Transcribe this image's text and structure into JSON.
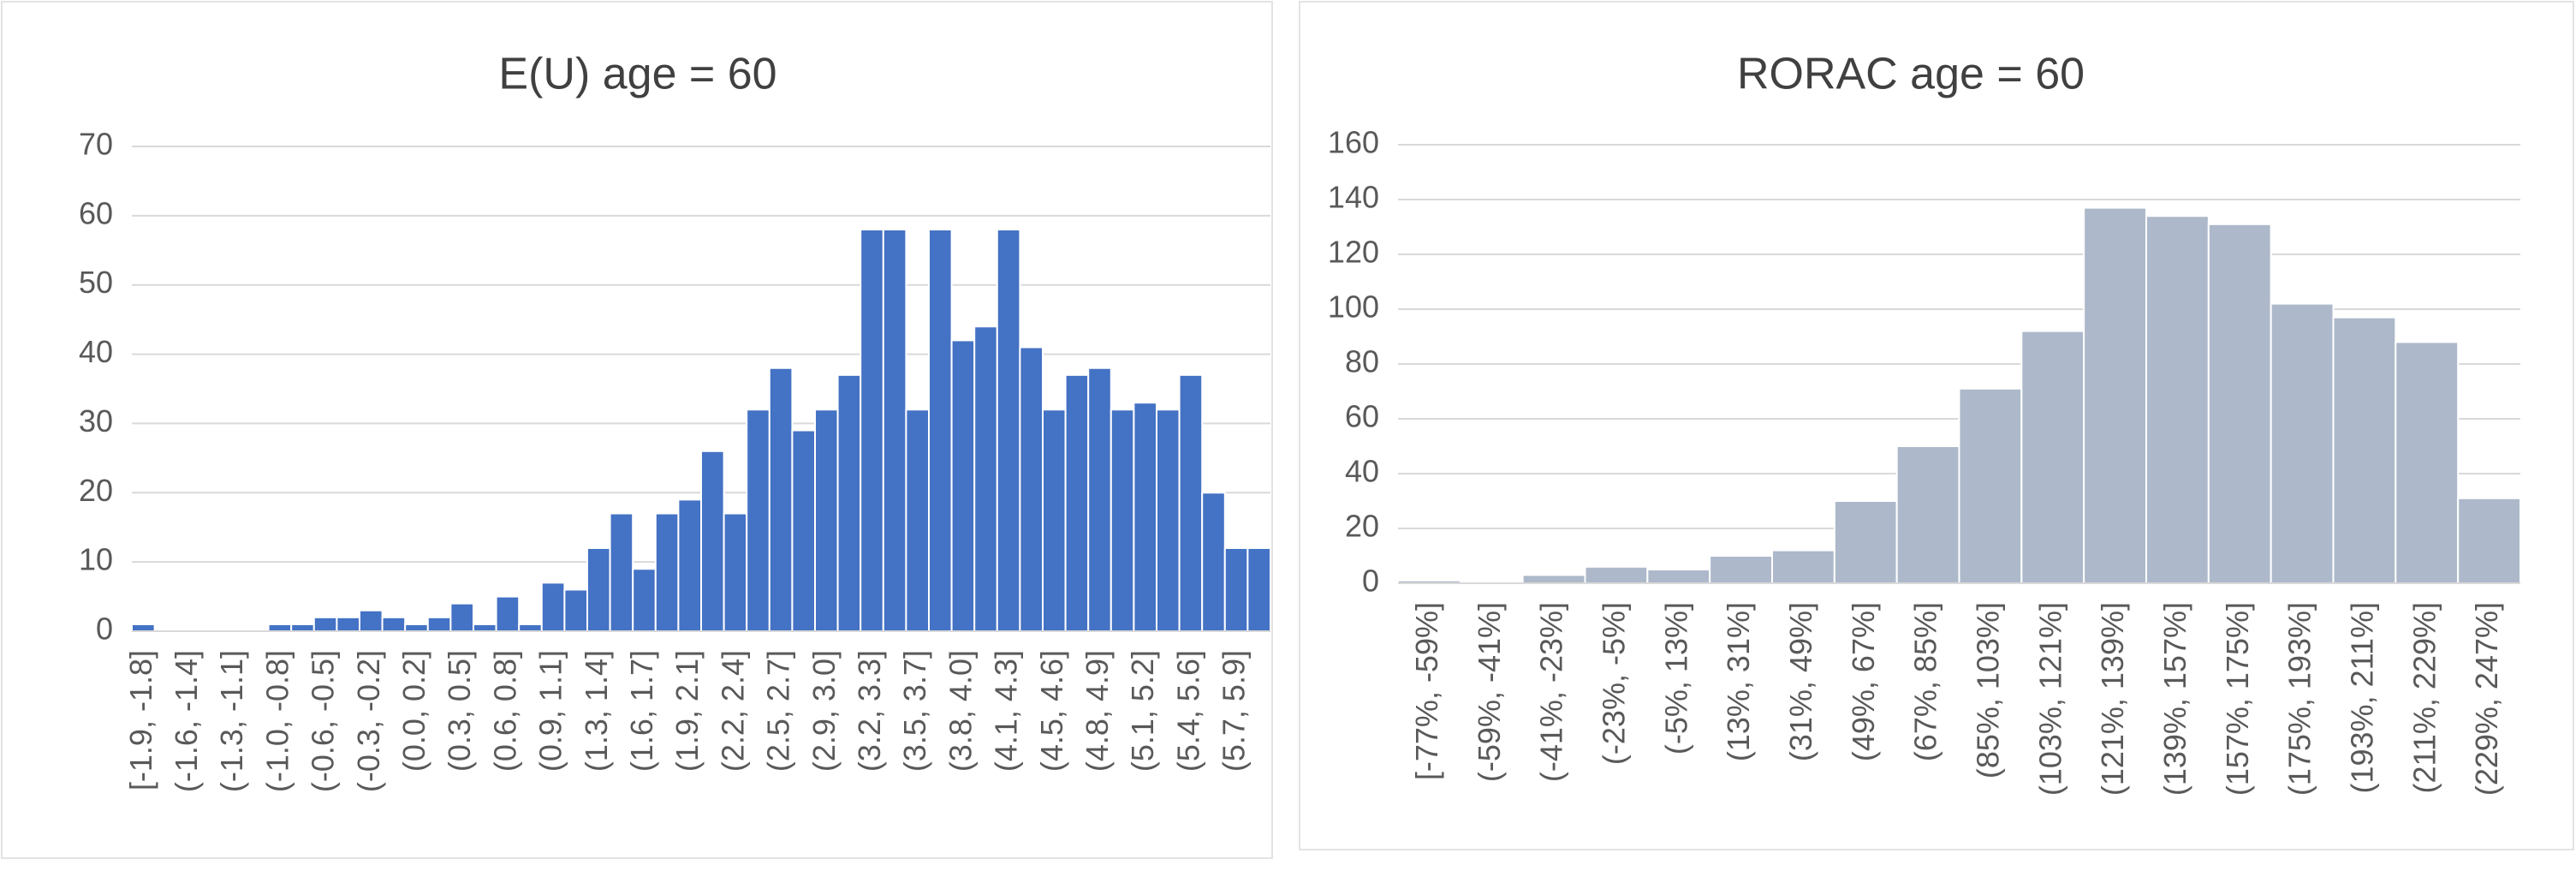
{
  "chart_data": [
    {
      "type": "bar",
      "title": "E(U) age = 60",
      "color": "#4472c4",
      "categories": [
        "[-1.9, -1.8]",
        null,
        "(-1.6, -1.4]",
        null,
        "(-1.3, -1.1]",
        null,
        "(-1.0, -0.8]",
        null,
        "(-0.6, -0.5]",
        null,
        "(-0.3, -0.2]",
        null,
        "(0.0, 0.2]",
        null,
        "(0.3, 0.5]",
        null,
        "(0.6, 0.8]",
        null,
        "(0.9, 1.1]",
        null,
        "(1.3, 1.4]",
        null,
        "(1.6, 1.7]",
        null,
        "(1.9, 2.1]",
        null,
        "(2.2, 2.4]",
        null,
        "(2.5, 2.7]",
        null,
        "(2.9, 3.0]",
        null,
        "(3.2, 3.3]",
        null,
        "(3.5, 3.7]",
        null,
        "(3.8, 4.0]",
        null,
        "(4.1, 4.3]",
        null,
        "(4.5, 4.6]",
        null,
        "(4.8, 4.9]",
        null,
        "(5.1, 5.2]",
        null,
        "(5.4, 5.6]",
        null,
        "(5.7, 5.9]",
        null
      ],
      "values": [
        1,
        0,
        0,
        0,
        0,
        0,
        1,
        1,
        2,
        2,
        3,
        2,
        1,
        2,
        4,
        1,
        5,
        1,
        7,
        6,
        12,
        17,
        9,
        17,
        19,
        26,
        17,
        32,
        38,
        29,
        32,
        37,
        58,
        58,
        32,
        58,
        42,
        44,
        58,
        41,
        32,
        37,
        38,
        32,
        33,
        32,
        37,
        20,
        12,
        12
      ],
      "ylim": [
        0,
        70
      ],
      "yticks": [
        0,
        10,
        20,
        30,
        40,
        50,
        60,
        70
      ],
      "grid": true
    },
    {
      "type": "bar",
      "title": "RORAC age = 60",
      "color": "#adb9ca",
      "categories": [
        "[-77%, -59%]",
        "(-59%, -41%]",
        "(-41%, -23%]",
        "(-23%, -5%]",
        "(-5%, 13%]",
        "(13%, 31%]",
        "(31%, 49%]",
        "(49%, 67%]",
        "(67%, 85%]",
        "(85%, 103%]",
        "(103%, 121%]",
        "(121%, 139%]",
        "(139%, 157%]",
        "(157%, 175%]",
        "(175%, 193%]",
        "(193%, 211%]",
        "(211%, 229%]",
        "(229%, 247%]"
      ],
      "values": [
        1,
        0,
        3,
        6,
        5,
        10,
        12,
        30,
        50,
        71,
        92,
        137,
        134,
        131,
        102,
        97,
        88,
        31
      ],
      "ylim": [
        0,
        160
      ],
      "yticks": [
        0,
        20,
        40,
        60,
        80,
        100,
        120,
        140,
        160
      ],
      "grid": true
    }
  ]
}
